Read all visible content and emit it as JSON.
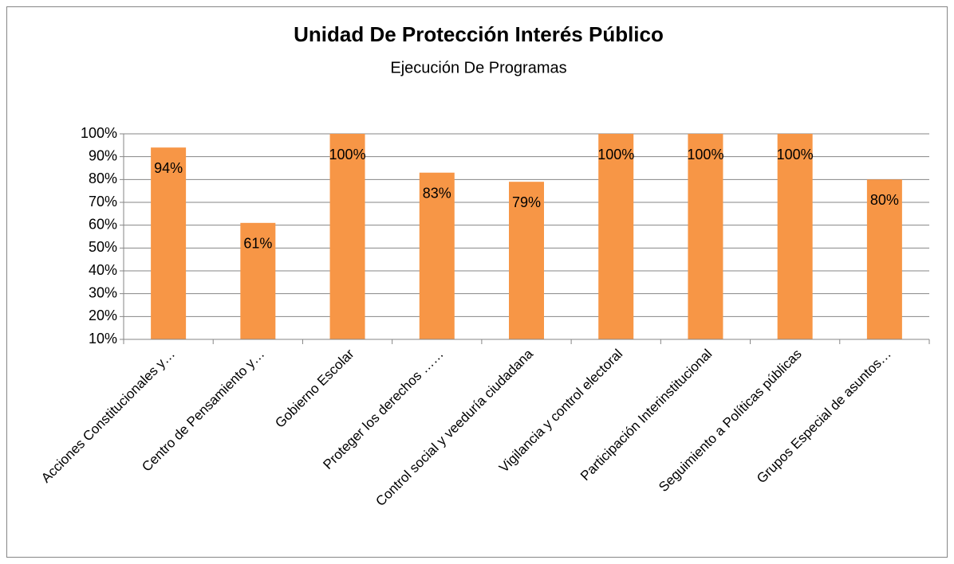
{
  "chart_data": {
    "type": "bar",
    "title": "Unidad De Protección Interés Público",
    "subtitle": "Ejecución De Programas",
    "categories": [
      "Acciones Constitucionales y…",
      "Centro de Pensamiento y…",
      "Gobierno Escolar",
      "Proteger los derechos ……",
      "Control social y veeduría ciudadana",
      "Vigilancia y control electoral",
      "Participación Interinstitucional",
      "Seguimiento a Políticas públicas",
      "Grupos Especial de asuntos…"
    ],
    "values": [
      94,
      61,
      100,
      83,
      79,
      100,
      100,
      100,
      80
    ],
    "value_labels": [
      "94%",
      "61%",
      "100%",
      "83%",
      "79%",
      "100%",
      "100%",
      "100%",
      "80%"
    ],
    "color": "#f79646",
    "ylim": [
      10,
      100
    ],
    "yticks": [
      {
        "value": 10,
        "label": "10%"
      },
      {
        "value": 20,
        "label": "20%"
      },
      {
        "value": 30,
        "label": "30%"
      },
      {
        "value": 40,
        "label": "40%"
      },
      {
        "value": 50,
        "label": "50%"
      },
      {
        "value": 60,
        "label": "60%"
      },
      {
        "value": 70,
        "label": "70%"
      },
      {
        "value": 80,
        "label": "80%"
      },
      {
        "value": 90,
        "label": "90%"
      },
      {
        "value": 100,
        "label": "100%"
      }
    ],
    "grid": true
  }
}
